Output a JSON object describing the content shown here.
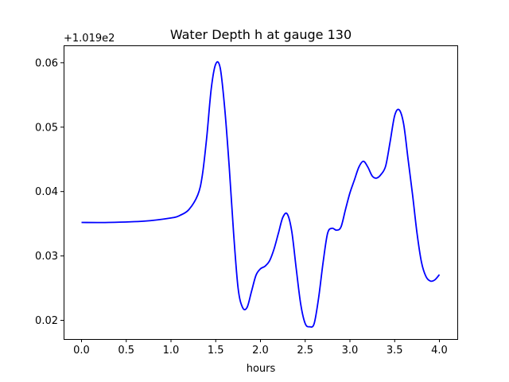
{
  "chart_data": {
    "type": "line",
    "title": "Water Depth h at gauge 130",
    "xlabel": "hours",
    "ylabel": "",
    "y_offset_label": "+1.019e2",
    "xlim": [
      -0.2,
      4.2
    ],
    "ylim": [
      0.0171,
      0.0627
    ],
    "grid": false,
    "x_ticks": [
      0.0,
      0.5,
      1.0,
      1.5,
      2.0,
      2.5,
      3.0,
      3.5,
      4.0
    ],
    "x_tick_labels": [
      "0.0",
      "0.5",
      "1.0",
      "1.5",
      "2.0",
      "2.5",
      "3.0",
      "3.5",
      "4.0"
    ],
    "y_ticks": [
      0.02,
      0.03,
      0.04,
      0.05,
      0.06
    ],
    "y_tick_labels": [
      "0.02",
      "0.03",
      "0.04",
      "0.05",
      "0.06"
    ],
    "series": [
      {
        "color": "#0000ff",
        "x": [
          0.0,
          0.3,
          0.7,
          1.0,
          1.1,
          1.2,
          1.3,
          1.35,
          1.4,
          1.45,
          1.5,
          1.55,
          1.6,
          1.65,
          1.7,
          1.75,
          1.8,
          1.85,
          1.9,
          1.95,
          2.0,
          2.05,
          2.1,
          2.15,
          2.2,
          2.25,
          2.3,
          2.35,
          2.4,
          2.45,
          2.5,
          2.55,
          2.6,
          2.65,
          2.7,
          2.75,
          2.8,
          2.85,
          2.9,
          2.95,
          3.0,
          3.05,
          3.1,
          3.15,
          3.2,
          3.25,
          3.3,
          3.35,
          3.4,
          3.45,
          3.5,
          3.55,
          3.6,
          3.65,
          3.7,
          3.75,
          3.8,
          3.85,
          3.9,
          3.95,
          4.0
        ],
        "y": [
          0.0352,
          0.0352,
          0.0354,
          0.0359,
          0.0363,
          0.0372,
          0.0395,
          0.0425,
          0.0485,
          0.056,
          0.0598,
          0.0592,
          0.053,
          0.044,
          0.0335,
          0.025,
          0.022,
          0.022,
          0.0245,
          0.027,
          0.028,
          0.0284,
          0.0292,
          0.031,
          0.0335,
          0.036,
          0.0365,
          0.0338,
          0.028,
          0.0225,
          0.0195,
          0.019,
          0.0195,
          0.0235,
          0.029,
          0.0335,
          0.0343,
          0.034,
          0.0345,
          0.0372,
          0.0398,
          0.0418,
          0.0438,
          0.0447,
          0.0438,
          0.0424,
          0.0421,
          0.0427,
          0.044,
          0.0478,
          0.0518,
          0.0527,
          0.0505,
          0.045,
          0.0395,
          0.0335,
          0.029,
          0.0268,
          0.0261,
          0.0263,
          0.0271
        ]
      }
    ]
  }
}
